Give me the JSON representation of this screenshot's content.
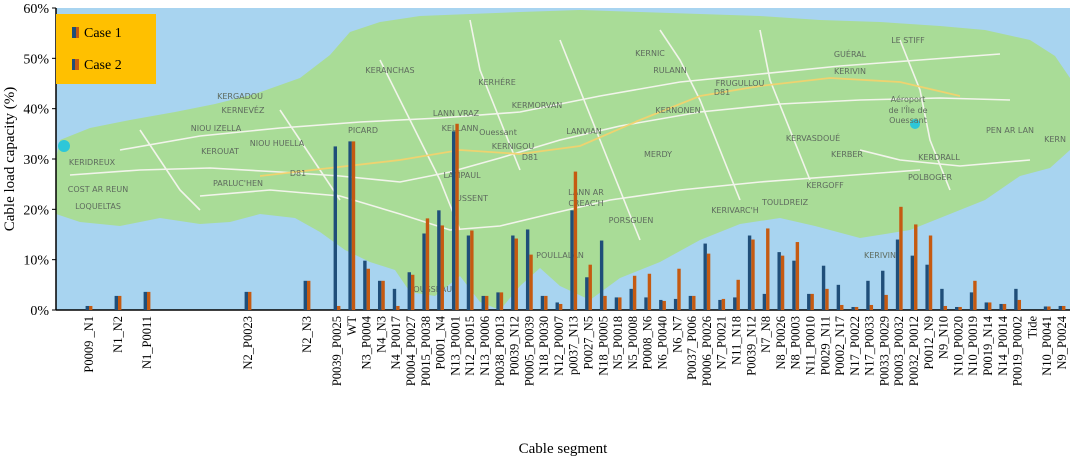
{
  "colors": {
    "case1": "#1f4e79",
    "case2": "#c55a11",
    "legend_bg": "#ffc000",
    "water": "#a8d4f0",
    "land": "#a9dc97",
    "road": "#f6f6f0",
    "highway": "#f5d26b"
  },
  "map_labels": [
    "KERNIC",
    "GUÉRAL",
    "LE STIFF",
    "RULANN",
    "KERIVIN",
    "KERANCHAS",
    "KERHÉRE",
    "FRUGULLOU",
    "KERGADOU",
    "KERNEVÉZ",
    "LANN VRAZ",
    "KERMORVAN",
    "KERNONEN",
    "D81",
    "Aéroport",
    "de l'Île de",
    "Ouessant",
    "NIOU IZELLA",
    "NIOU HUELLA",
    "PICARD",
    "KELLANN",
    "Ouessant",
    "LANVIAN",
    "KERNIGOU",
    "KERVASDOUÉ",
    "PEN AR LAN",
    "KERN",
    "KEROUAT",
    "KERIDREUX",
    "D81",
    "D81",
    "MERDY",
    "KERBER",
    "KERDRALL",
    "COST AR REUN",
    "PARLUC'HEN",
    "LAMPAUL",
    "POLBOGER",
    "KERGOFF",
    "LOQUELTAS",
    "USSENT",
    "LANN AR",
    "CREAC'H",
    "TOULDREIZ",
    "KERIVARC'H",
    "PORSGUEN",
    "POULLALAN",
    "KERIVIN",
    "ROUSSEAU"
  ],
  "chart_data": {
    "type": "bar",
    "title": "",
    "xlabel": "Cable segment",
    "ylabel": "Cable load capacity (%)",
    "ylim": [
      0,
      60
    ],
    "yticks": [
      0,
      10,
      20,
      30,
      40,
      50,
      60
    ],
    "ytick_labels": [
      "0%",
      "10%",
      "20%",
      "30%",
      "40%",
      "50%",
      "60%"
    ],
    "grid": false,
    "legend_position": "top-left",
    "categories": [
      "P0009 _N1",
      "N1_N2",
      "N1_P0011",
      "N2_P0023",
      "N2_N3",
      "P0039_P0025",
      "WT",
      "N3_P0004",
      "N4_N3",
      "N4_P0017",
      "P0004_P0027",
      "P0015_P0038",
      "P0001_N4",
      "N13_P0001",
      "N12_P0015",
      "N13_P0006",
      "P0038_P0013",
      "P0039_N12",
      "P0005_P0039",
      "N18_P0030",
      "N12_P0007",
      "p0037_N13",
      "P0027_N5",
      "N18_P0005",
      "N5_P0018",
      "N5_P0008",
      "P0008_N6",
      "N6_P0040",
      "N6_N7",
      "P0037_P006",
      "P0006_P0026",
      "N7_P0021",
      "N11_N18",
      "P0039_N12",
      "N7_N8",
      "N8_P0026",
      "N8_P0003",
      "N11_P0010",
      "P0029_N11",
      "P0002_N17",
      "N17_P0022",
      "N17_P0033",
      "P0033_P0029",
      "P0003_P0032",
      "P0032_P0012",
      "P0012_N9",
      "N9_N10",
      "N10_P0020",
      "N10_P0019",
      "P0019_N14",
      "N14_P0014",
      "P0019_P0002",
      "Tide",
      "N10_P0041",
      "N9_P0024"
    ],
    "series": [
      {
        "name": "Case 1",
        "values": [
          0.8,
          2.8,
          3.6,
          3.6,
          5.8,
          32.5,
          33.5,
          9.8,
          5.8,
          4.2,
          7.5,
          15.2,
          19.8,
          35.5,
          14.8,
          2.8,
          3.5,
          14.8,
          16.0,
          2.8,
          1.5,
          19.8,
          6.5,
          13.8,
          2.5,
          4.2,
          2.5,
          2.0,
          2.2,
          2.8,
          13.2,
          2.0,
          2.5,
          14.8,
          3.2,
          11.5,
          9.8,
          3.2,
          8.8,
          5.0,
          0.6,
          5.8,
          7.8,
          14.0,
          10.8,
          9.0,
          4.2,
          0.6,
          3.5,
          1.5,
          1.2,
          4.2,
          0.0,
          0.7,
          0.8
        ]
      },
      {
        "name": "Case 2",
        "values": [
          0.8,
          2.8,
          3.6,
          3.6,
          5.8,
          0.8,
          33.5,
          8.2,
          5.8,
          0.8,
          7.0,
          18.2,
          16.8,
          37.0,
          15.8,
          2.8,
          3.5,
          14.2,
          11.0,
          2.8,
          1.2,
          27.5,
          9.0,
          2.8,
          2.5,
          6.8,
          7.2,
          1.8,
          8.2,
          2.8,
          11.2,
          2.2,
          6.0,
          14.0,
          16.2,
          10.8,
          13.5,
          3.2,
          4.2,
          1.0,
          0.6,
          1.0,
          3.0,
          20.5,
          17.0,
          14.8,
          0.8,
          0.6,
          5.8,
          1.5,
          1.2,
          2.0,
          0.0,
          0.7,
          0.8
        ]
      }
    ]
  }
}
